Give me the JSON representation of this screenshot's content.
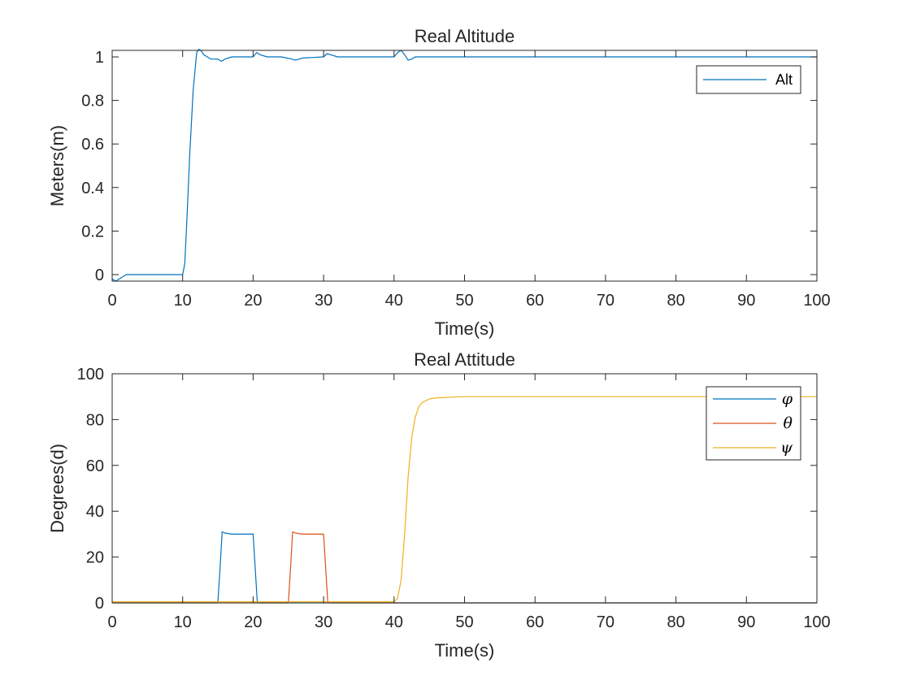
{
  "chart_data": [
    {
      "type": "line",
      "title": "Real Altitude",
      "xlabel": "Time(s)",
      "ylabel": "Meters(m)",
      "xlim": [
        0,
        100
      ],
      "ylim": [
        -0.03,
        1.03
      ],
      "xticks": [
        0,
        10,
        20,
        30,
        40,
        50,
        60,
        70,
        80,
        90,
        100
      ],
      "yticks": [
        0,
        0.2,
        0.4,
        0.6,
        0.8,
        1
      ],
      "grid": false,
      "legend_position": "top-right",
      "series": [
        {
          "name": "Alt",
          "color": "#0072BD",
          "x": [
            0,
            0.5,
            1,
            1.5,
            2,
            2.5,
            10,
            10.3,
            10.6,
            11,
            11.5,
            12,
            12.3,
            12.6,
            13,
            13.5,
            14,
            15,
            15.5,
            16,
            17,
            20,
            20.5,
            21,
            22,
            24,
            25.5,
            26,
            27,
            30,
            30.5,
            31,
            32,
            35,
            40,
            40.5,
            41,
            41.5,
            42,
            42.5,
            43,
            45,
            100
          ],
          "y": [
            -0.02,
            -0.03,
            -0.02,
            -0.01,
            0,
            0,
            0,
            0.05,
            0.25,
            0.55,
            0.85,
            1.02,
            1.035,
            1.03,
            1.01,
            1.0,
            0.99,
            0.99,
            0.98,
            0.99,
            1.0,
            1.0,
            1.02,
            1.01,
            1.0,
            1.0,
            0.99,
            0.985,
            0.995,
            1.0,
            1.015,
            1.01,
            1.0,
            1.0,
            1.0,
            1.02,
            1.03,
            1.01,
            0.985,
            0.99,
            1.0,
            1.0,
            1.0
          ]
        }
      ]
    },
    {
      "type": "line",
      "title": "Real Attitude",
      "xlabel": "Time(s)",
      "ylabel": "Degrees(d)",
      "xlim": [
        0,
        100
      ],
      "ylim": [
        0,
        100
      ],
      "xticks": [
        0,
        10,
        20,
        30,
        40,
        50,
        60,
        70,
        80,
        90,
        100
      ],
      "yticks": [
        0,
        20,
        40,
        60,
        80,
        100
      ],
      "grid": false,
      "legend_position": "top-right",
      "series": [
        {
          "name": "φ",
          "color": "#0072BD",
          "x": [
            0,
            15,
            15.3,
            15.6,
            16,
            17,
            19.5,
            20,
            20.3,
            20.6,
            21,
            100
          ],
          "y": [
            0,
            0,
            15,
            31,
            30.5,
            30,
            30,
            30,
            15,
            0,
            0,
            0
          ]
        },
        {
          "name": "θ",
          "color": "#D95319",
          "x": [
            0,
            25,
            25.3,
            25.6,
            26,
            27,
            29.5,
            30,
            30.3,
            30.6,
            31,
            100
          ],
          "y": [
            0,
            0,
            15,
            31,
            30.5,
            30,
            30,
            30,
            15,
            0,
            0,
            0
          ]
        },
        {
          "name": "ψ",
          "color": "#EDB120",
          "x": [
            0,
            40,
            40.5,
            41,
            41.5,
            42,
            42.5,
            43,
            43.5,
            44,
            45,
            46,
            48,
            50,
            55,
            100
          ],
          "y": [
            0.5,
            0.5,
            2,
            10,
            30,
            55,
            72,
            81,
            85.5,
            87.5,
            89,
            89.5,
            89.8,
            90,
            90,
            90
          ]
        }
      ]
    }
  ]
}
